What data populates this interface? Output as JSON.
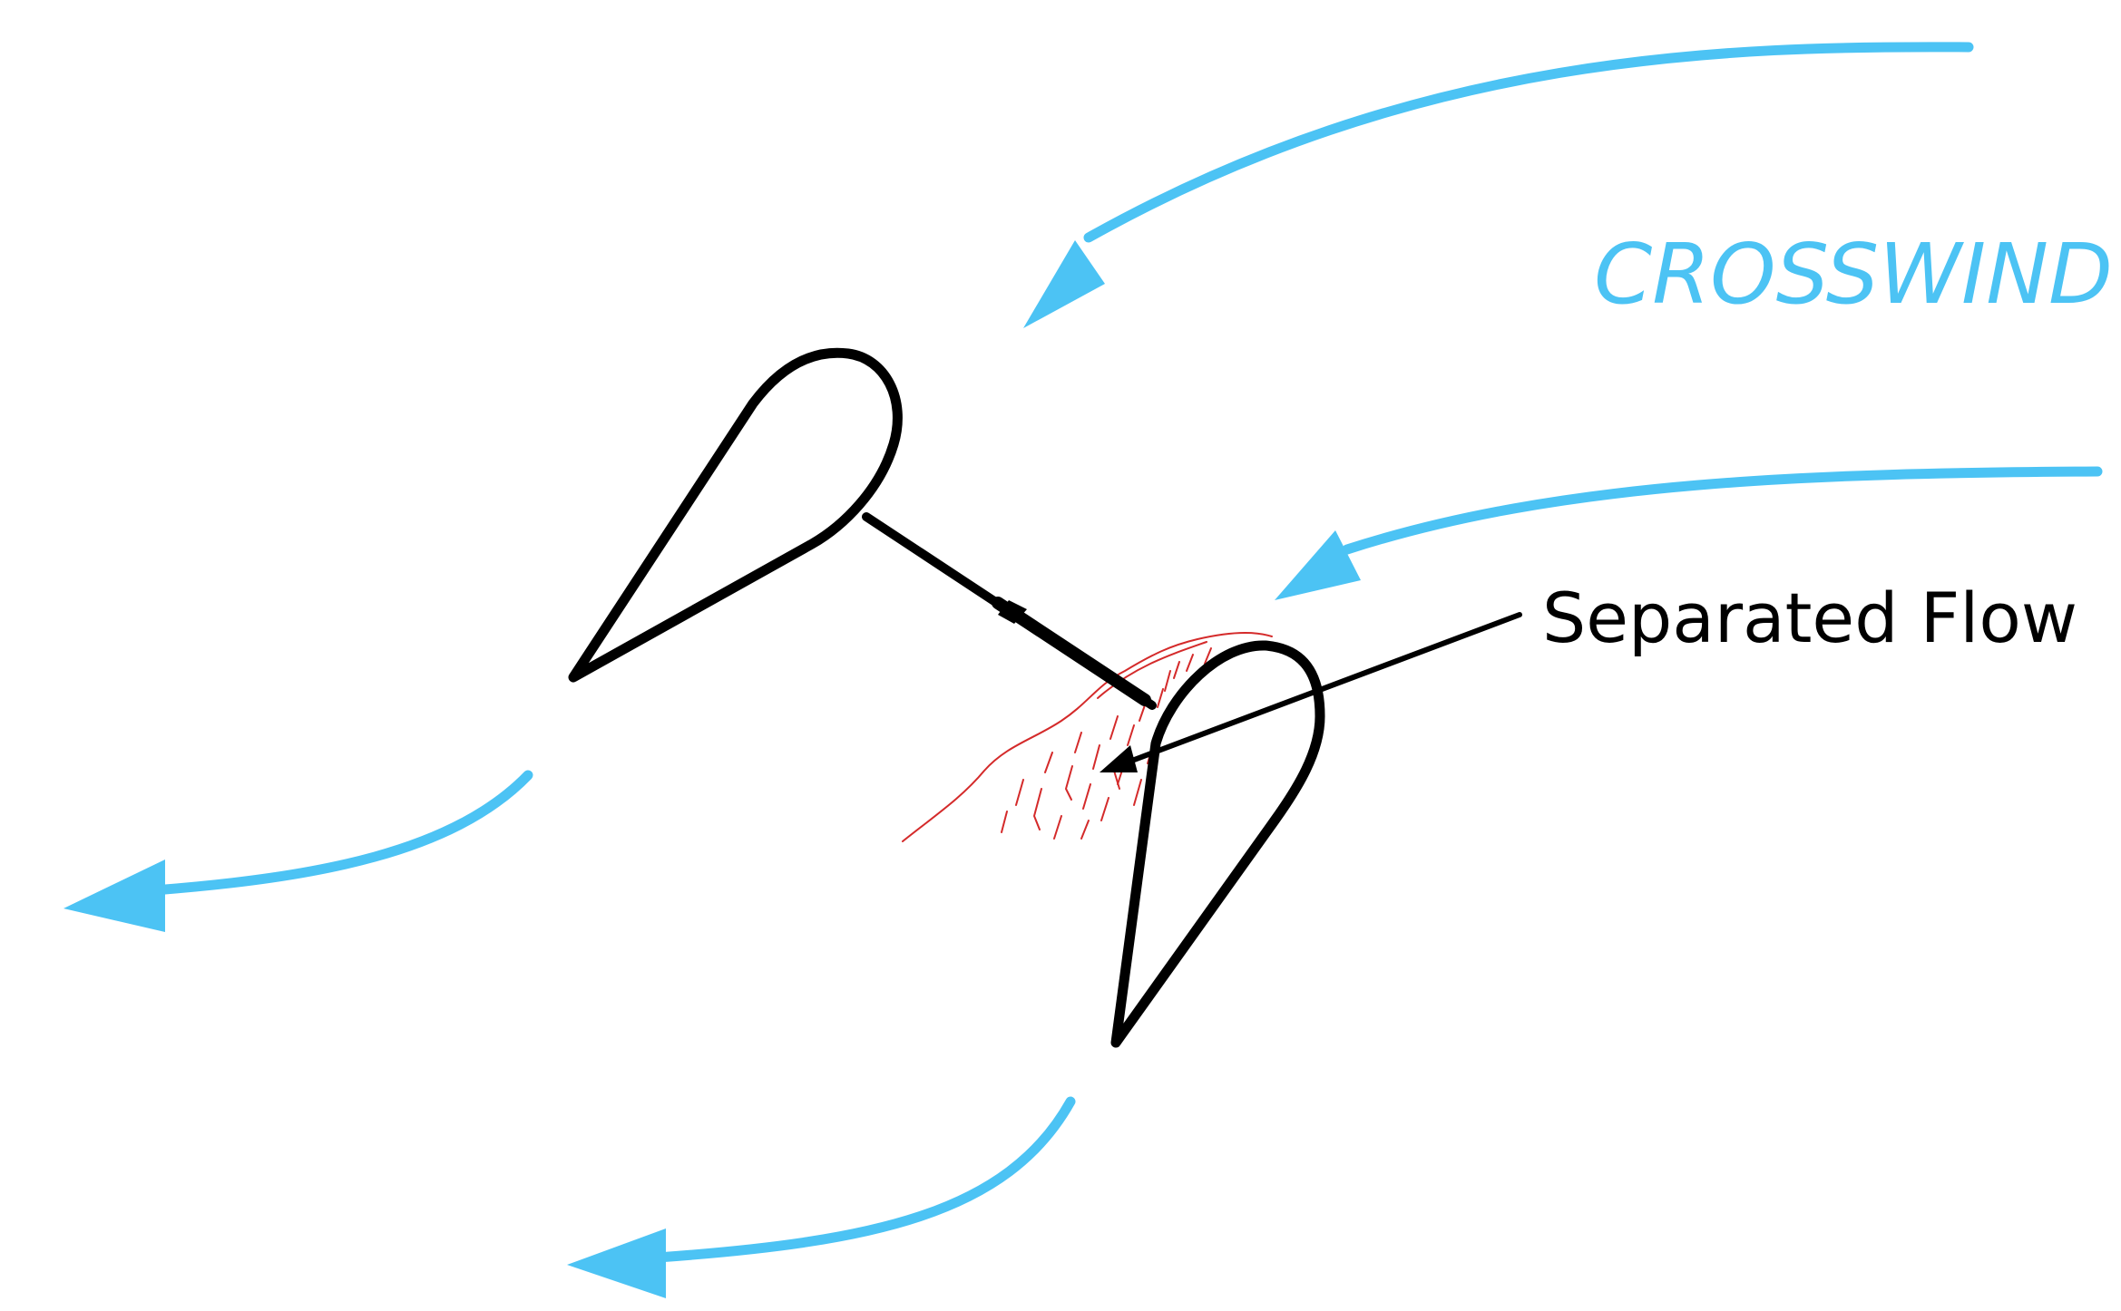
{
  "labels": {
    "crosswind": "CROSSWIND",
    "separated_flow": "Separated Flow"
  },
  "colors": {
    "wind": "#4cc3f4",
    "foil": "#000000",
    "separation": "#d42a2a",
    "annotation": "#000000",
    "background": "#ffffff"
  },
  "icons": {
    "wind_arrow": "curved-arrow",
    "pointer": "arrow-pointer"
  }
}
